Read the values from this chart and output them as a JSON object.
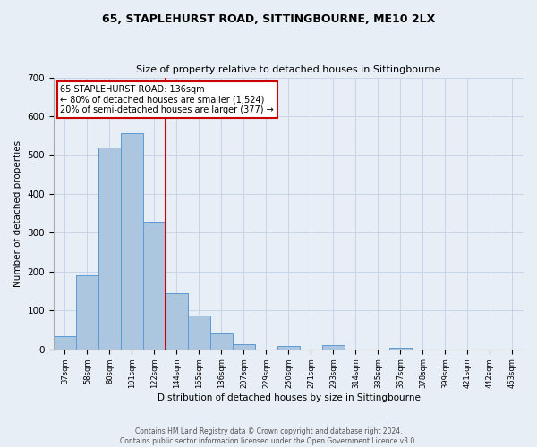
{
  "title": "65, STAPLEHURST ROAD, SITTINGBOURNE, ME10 2LX",
  "subtitle": "Size of property relative to detached houses in Sittingbourne",
  "xlabel": "Distribution of detached houses by size in Sittingbourne",
  "ylabel": "Number of detached properties",
  "footer_line1": "Contains HM Land Registry data © Crown copyright and database right 2024.",
  "footer_line2": "Contains public sector information licensed under the Open Government Licence v3.0.",
  "bin_labels": [
    "37sqm",
    "58sqm",
    "80sqm",
    "101sqm",
    "122sqm",
    "144sqm",
    "165sqm",
    "186sqm",
    "207sqm",
    "229sqm",
    "250sqm",
    "271sqm",
    "293sqm",
    "314sqm",
    "335sqm",
    "357sqm",
    "378sqm",
    "399sqm",
    "421sqm",
    "442sqm",
    "463sqm"
  ],
  "bar_heights": [
    33,
    190,
    519,
    557,
    329,
    144,
    87,
    41,
    14,
    0,
    8,
    0,
    10,
    0,
    0,
    4,
    0,
    0,
    0,
    0,
    0
  ],
  "bar_color": "#adc6e0",
  "bar_edge_color": "#5b9bd5",
  "ylim": [
    0,
    700
  ],
  "yticks": [
    0,
    100,
    200,
    300,
    400,
    500,
    600,
    700
  ],
  "property_line_x": 5,
  "property_line_label": "65 STAPLEHURST ROAD: 136sqm",
  "annotation_line1": "← 80% of detached houses are smaller (1,524)",
  "annotation_line2": "20% of semi-detached houses are larger (377) →",
  "annotation_box_color": "#ffffff",
  "annotation_box_edge": "#cc0000",
  "vline_color": "#cc0000",
  "grid_color": "#c8d4e8",
  "background_color": "#e8eef5"
}
